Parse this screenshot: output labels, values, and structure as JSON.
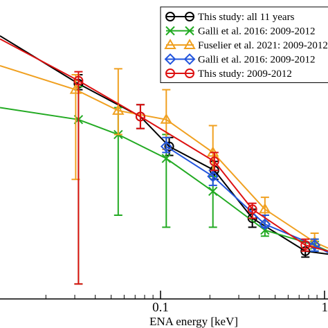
{
  "chart_data": {
    "type": "line",
    "xlabel": "ENA energy [keV]",
    "ylabel": "",
    "title": "",
    "xscale": "log",
    "xlim": [
      0.0105,
      1.05
    ],
    "ylim": [
      0,
      1
    ],
    "x_ticks": [
      {
        "value": 0.1,
        "label": "0.1"
      },
      {
        "value": 1.0,
        "label": "1"
      }
    ],
    "grid": false,
    "legend": {
      "placement": "top-right",
      "boxed": true
    },
    "series": [
      {
        "name": "This study: all 11 years",
        "color": "#000000",
        "marker": "circle",
        "points": [
          {
            "x": 0.0105,
            "y": 0.88
          },
          {
            "x": 0.0316,
            "y": 0.72,
            "lo": 0.7,
            "hi": 0.75
          },
          {
            "x": 0.0754,
            "y": 0.61,
            "lo": 0.57,
            "hi": 0.65
          },
          {
            "x": 0.113,
            "y": 0.51,
            "lo": 0.48,
            "hi": 0.54
          },
          {
            "x": 0.213,
            "y": 0.43,
            "lo": 0.4,
            "hi": 0.46
          },
          {
            "x": 0.363,
            "y": 0.27,
            "lo": 0.24,
            "hi": 0.3
          },
          {
            "x": 0.764,
            "y": 0.16,
            "lo": 0.14,
            "hi": 0.19
          },
          {
            "x": 1.05,
            "y": 0.15
          }
        ]
      },
      {
        "name": "Galli et al. 2016: 2009-2012",
        "color": "#22aa22",
        "marker": "x",
        "points": [
          {
            "x": 0.0105,
            "y": 0.64
          },
          {
            "x": 0.0316,
            "y": 0.6,
            "lo": 0.05,
            "hi": 0.71
          },
          {
            "x": 0.0552,
            "y": 0.55,
            "lo": 0.28,
            "hi": 0.64
          },
          {
            "x": 0.1084,
            "y": 0.47,
            "lo": 0.24,
            "hi": 0.55
          },
          {
            "x": 0.2087,
            "y": 0.36,
            "lo": 0.24,
            "hi": 0.41
          },
          {
            "x": 0.4331,
            "y": 0.23,
            "lo": 0.21,
            "hi": 0.28
          },
          {
            "x": 0.87,
            "y": 0.18,
            "lo": 0.16,
            "hi": 0.2
          },
          {
            "x": 1.05,
            "y": 0.16
          }
        ]
      },
      {
        "name": "Fuselier et al. 2021: 2009-2012",
        "color": "#f0a020",
        "marker": "triangle",
        "points": [
          {
            "x": 0.0105,
            "y": 0.78
          },
          {
            "x": 0.0304,
            "y": 0.7,
            "lo": 0.4,
            "hi": 0.75
          },
          {
            "x": 0.0552,
            "y": 0.63,
            "lo": 0.55,
            "hi": 0.77
          },
          {
            "x": 0.1084,
            "y": 0.6,
            "lo": 0.5,
            "hi": 0.7
          },
          {
            "x": 0.2087,
            "y": 0.49,
            "lo": 0.43,
            "hi": 0.58
          },
          {
            "x": 0.4331,
            "y": 0.3,
            "lo": 0.26,
            "hi": 0.34
          },
          {
            "x": 0.87,
            "y": 0.19,
            "lo": 0.17,
            "hi": 0.22
          },
          {
            "x": 1.05,
            "y": 0.17
          }
        ]
      },
      {
        "name": "Galli et al. 2016: 2009-2012",
        "color": "#2255dd",
        "marker": "diamond",
        "points": [
          {
            "x": 0.1084,
            "y": 0.51,
            "lo": 0.49,
            "hi": 0.54
          },
          {
            "x": 0.2087,
            "y": 0.41,
            "lo": 0.38,
            "hi": 0.43
          },
          {
            "x": 0.4331,
            "y": 0.25,
            "lo": 0.24,
            "hi": 0.28
          },
          {
            "x": 0.87,
            "y": 0.18,
            "lo": 0.16,
            "hi": 0.2
          },
          {
            "x": 1.05,
            "y": 0.155
          }
        ]
      },
      {
        "name": "This study: 2009-2012",
        "color": "#dd1111",
        "marker": "circle",
        "points": [
          {
            "x": 0.0105,
            "y": 0.87
          },
          {
            "x": 0.0316,
            "y": 0.73,
            "lo": 0.05,
            "hi": 0.76
          },
          {
            "x": 0.0754,
            "y": 0.61,
            "lo": 0.57,
            "hi": 0.65
          },
          {
            "x": 0.213,
            "y": 0.46,
            "lo": 0.43,
            "hi": 0.49
          },
          {
            "x": 0.363,
            "y": 0.3,
            "lo": 0.27,
            "hi": 0.32
          },
          {
            "x": 0.764,
            "y": 0.18,
            "lo": 0.16,
            "hi": 0.2
          },
          {
            "x": 1.05,
            "y": 0.16
          }
        ]
      }
    ]
  }
}
